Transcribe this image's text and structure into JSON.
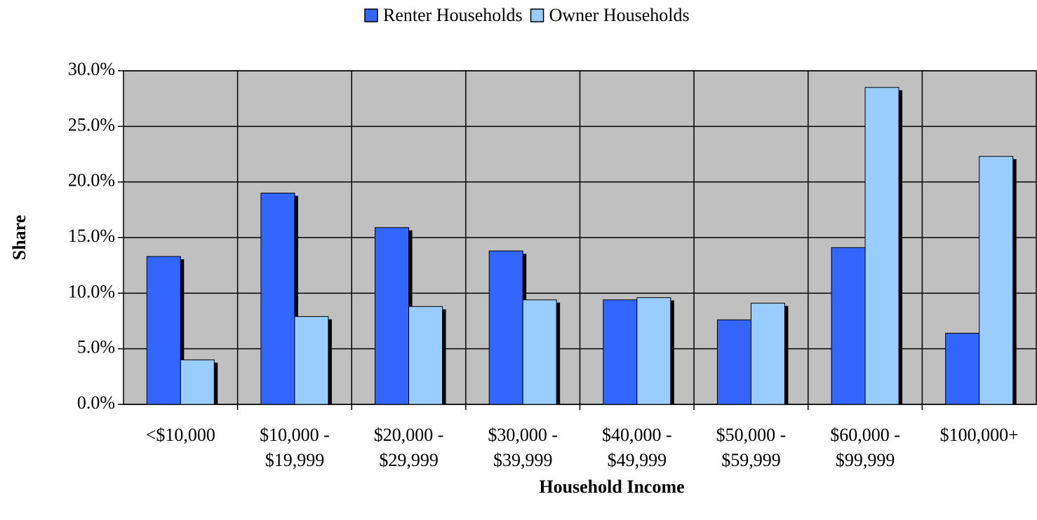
{
  "chart_data": {
    "type": "bar",
    "x_label": "Household Income",
    "y_label": "Share",
    "categories": [
      "<$10,000",
      "$10,000 -\n$19,999",
      "$20,000 -\n$29,999",
      "$30,000 -\n$39,999",
      "$40,000 -\n$49,999",
      "$50,000 -\n$59,999",
      "$60,000 -\n$99,999",
      "$100,000+"
    ],
    "series": [
      {
        "name": "Renter Households",
        "color": "#3366ff",
        "values": [
          13.3,
          19.0,
          15.9,
          13.8,
          9.4,
          7.6,
          14.1,
          6.4
        ]
      },
      {
        "name": "Owner Households",
        "color": "#99ccff",
        "values": [
          4.0,
          7.9,
          8.8,
          9.4,
          9.6,
          9.1,
          28.5,
          22.3
        ]
      }
    ],
    "ylim": [
      0,
      30
    ],
    "yticks": [
      {
        "value": 0,
        "label": "0.0%"
      },
      {
        "value": 5,
        "label": "5.0%"
      },
      {
        "value": 10,
        "label": "10.0%"
      },
      {
        "value": 15,
        "label": "15.0%"
      },
      {
        "value": 20,
        "label": "20.0%"
      },
      {
        "value": 25,
        "label": "25.0%"
      },
      {
        "value": 30,
        "label": "30.0%"
      }
    ],
    "grid": true,
    "legend": "top"
  }
}
